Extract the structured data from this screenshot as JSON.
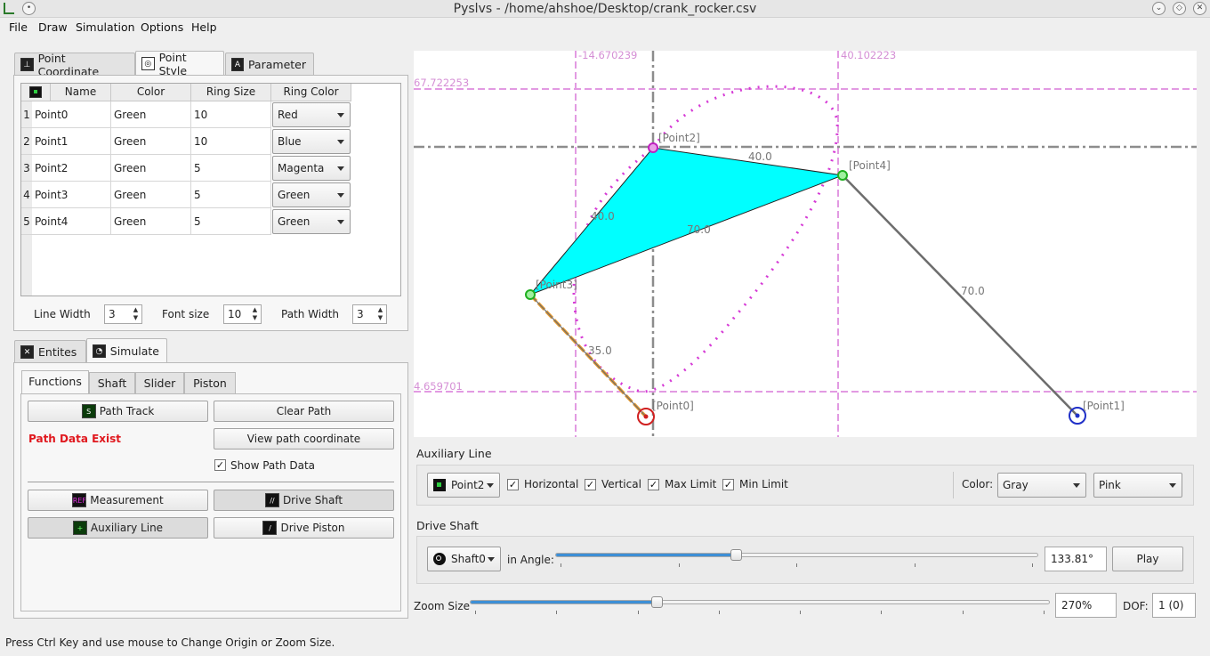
{
  "window": {
    "title": "Pyslvs - /home/ahshoe/Desktop/crank_rocker.csv"
  },
  "menu": [
    "File",
    "Draw",
    "Simulation",
    "Options",
    "Help"
  ],
  "top_tabs": [
    {
      "label": "Point Coordinate",
      "icon": "point-coordinate-icon"
    },
    {
      "label": "Point Style",
      "icon": "point-style-icon"
    },
    {
      "label": "Parameter",
      "icon": "parameter-icon"
    }
  ],
  "point_table": {
    "headers": [
      "Name",
      "Color",
      "Ring Size",
      "Ring Color"
    ],
    "rows": [
      {
        "num": "1",
        "name": "Point0",
        "color": "Green",
        "ring_size": "10",
        "ring_color": "Red"
      },
      {
        "num": "2",
        "name": "Point1",
        "color": "Green",
        "ring_size": "10",
        "ring_color": "Blue"
      },
      {
        "num": "3",
        "name": "Point2",
        "color": "Green",
        "ring_size": "5",
        "ring_color": "Magenta"
      },
      {
        "num": "4",
        "name": "Point3",
        "color": "Green",
        "ring_size": "5",
        "ring_color": "Green"
      },
      {
        "num": "5",
        "name": "Point4",
        "color": "Green",
        "ring_size": "5",
        "ring_color": "Green"
      }
    ]
  },
  "style_settings": {
    "line_width_label": "Line Width",
    "line_width": "3",
    "font_size_label": "Font size",
    "font_size": "10",
    "path_width_label": "Path Width",
    "path_width": "3"
  },
  "bottom_tabs": [
    {
      "label": "Entites",
      "icon": "entities-icon"
    },
    {
      "label": "Simulate",
      "icon": "simulate-icon"
    }
  ],
  "sub_tabs": [
    "Functions",
    "Shaft",
    "Slider",
    "Piston"
  ],
  "functions": {
    "path_track": "Path Track",
    "clear_path": "Clear Path",
    "path_status": "Path Data Exist",
    "view_path": "View path coordinate",
    "show_path_label": "Show Path Data",
    "measurement": "Measurement",
    "drive_shaft": "Drive Shaft",
    "auxiliary_line": "Auxiliary Line",
    "drive_piston": "Drive Piston"
  },
  "canvas": {
    "labels": {
      "x_left": "-14.670239",
      "x_right": "40.102223",
      "y_top": "67.722253",
      "y_bottom": "4.659701"
    },
    "points": [
      "[Point0]",
      "[Point1]",
      "[Point2]",
      "[Point3]",
      "[Point4]"
    ],
    "link_lengths": [
      "40.0",
      "70.0",
      "40.0",
      "70.0",
      "35.0"
    ],
    "colors": {
      "triangle": "#00ffff",
      "path": "#d63bd6",
      "aux": "#e29ae2",
      "crank": "#e69a2e",
      "link": "#6d6d6d"
    }
  },
  "aux_line": {
    "title": "Auxiliary Line",
    "point": "Point2",
    "horizontal": "Horizontal",
    "vertical": "Vertical",
    "max_limit": "Max Limit",
    "min_limit": "Min Limit",
    "color_label": "Color:",
    "color1": "Gray",
    "color2": "Pink"
  },
  "drive_shaft": {
    "title": "Drive Shaft",
    "shaft": "Shaft0",
    "angle_label": "in Angle:",
    "angle_value": "133.81°",
    "angle_fraction": 0.3717,
    "play": "Play"
  },
  "zoom": {
    "label": "Zoom Size",
    "value": "270%",
    "fraction": 0.32,
    "dof_label": "DOF:",
    "dof_value": "1 (0)"
  },
  "status": "Press Ctrl Key and use mouse to Change Origin or Zoom Size."
}
